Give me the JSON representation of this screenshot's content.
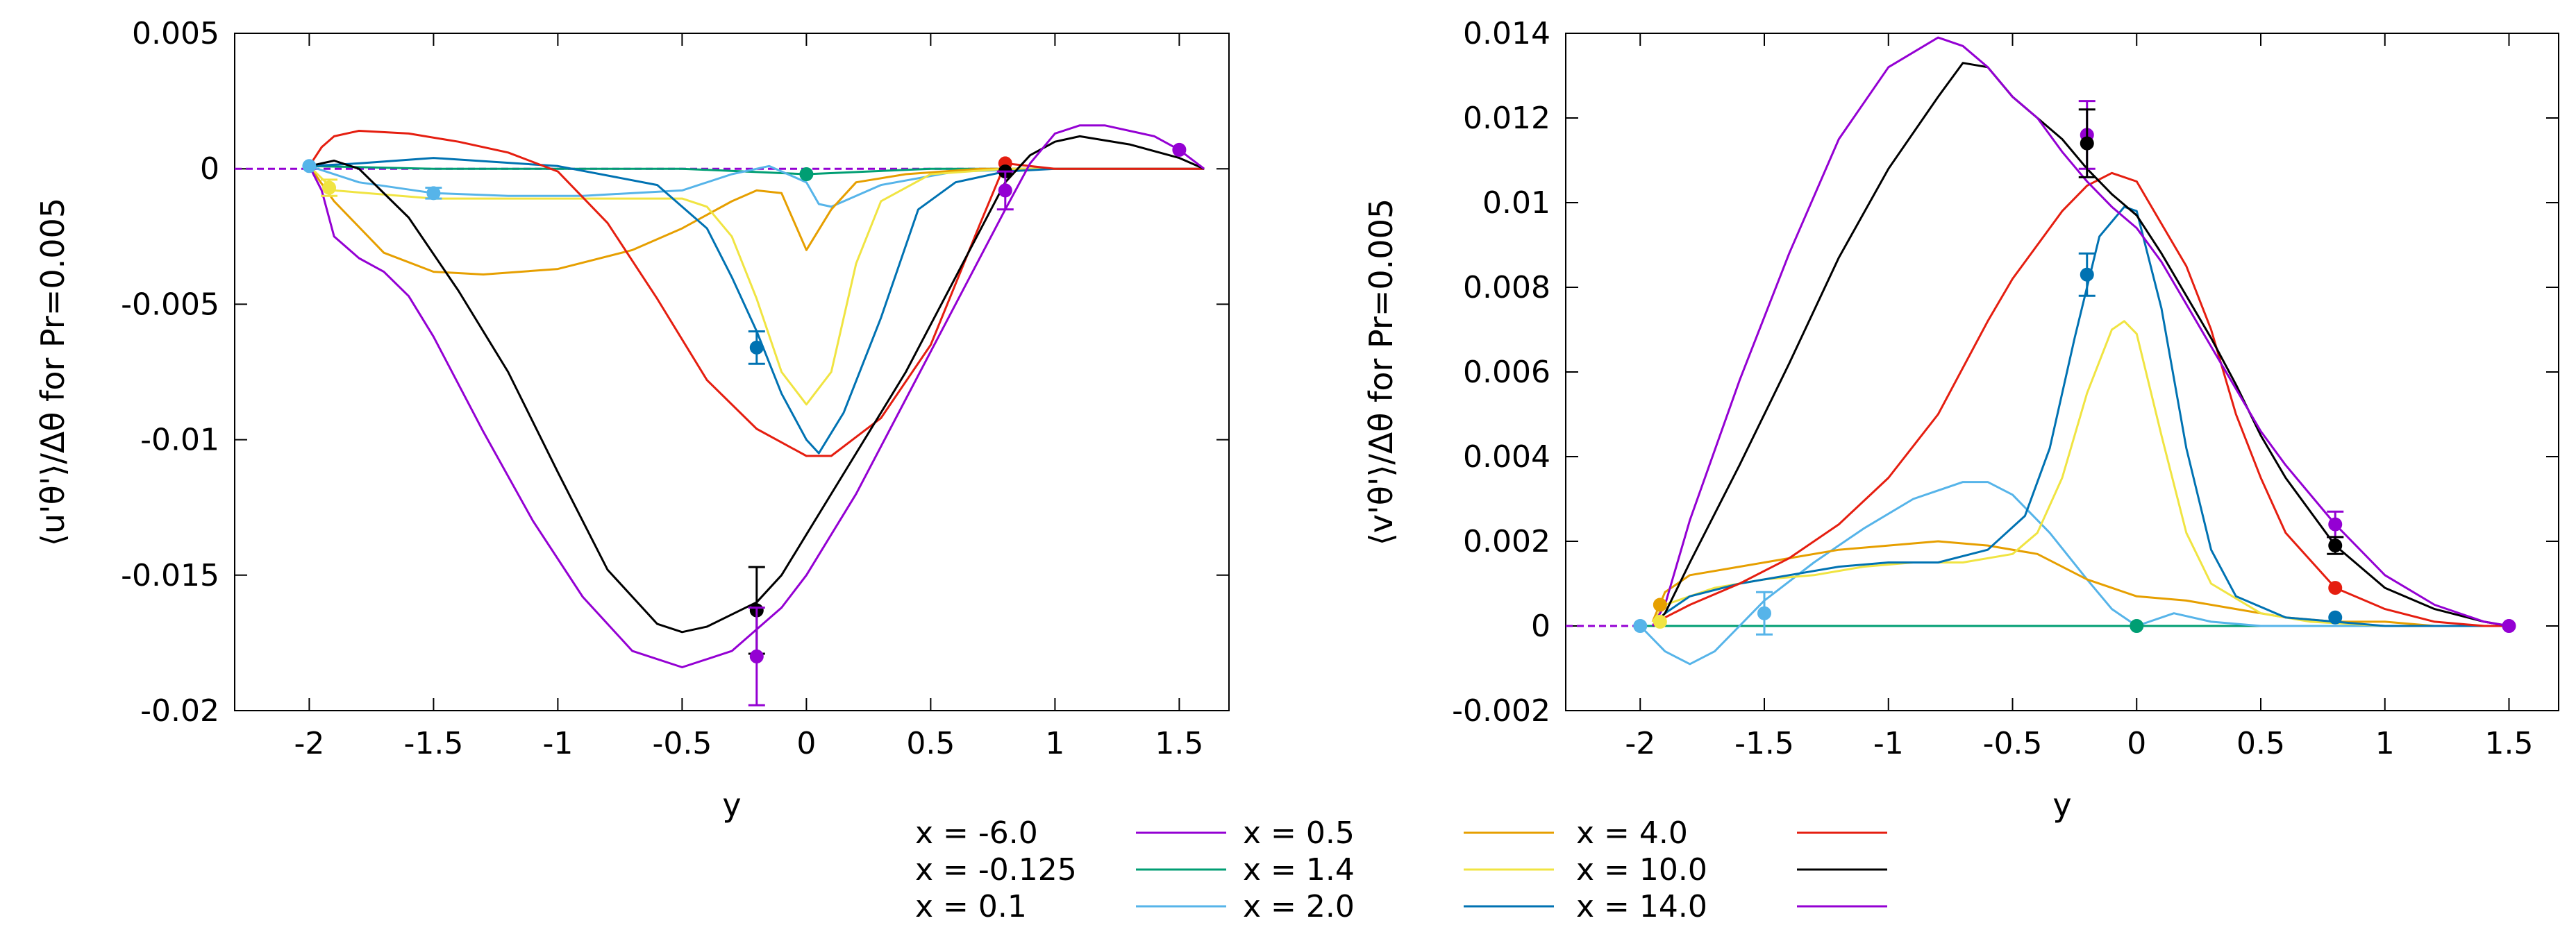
{
  "figure": {
    "legend": [
      {
        "label": "x = -6.0",
        "color": "#9400d3"
      },
      {
        "label": "x = -0.125",
        "color": "#009e73"
      },
      {
        "label": "x =  0.1",
        "color": "#56b4e9"
      },
      {
        "label": "x =  0.5",
        "color": "#e69f00"
      },
      {
        "label": "x =  1.4",
        "color": "#f0e442"
      },
      {
        "label": "x =  2.0",
        "color": "#0072b2"
      },
      {
        "label": "x =  4.0",
        "color": "#e51e10"
      },
      {
        "label": "x =  10.0",
        "color": "#000000"
      },
      {
        "label": "x =  14.0",
        "color": "#9400d3"
      }
    ],
    "legend_placement": "bottom-center, 3 rows"
  },
  "chart_data": [
    {
      "type": "line",
      "xlabel": "y",
      "ylabel": "⟨u'θ'⟩/Δθ for Pr=0.005",
      "xlim": [
        -2.3,
        1.7
      ],
      "ylim": [
        -0.02,
        0.005
      ],
      "xticks": [
        "-2",
        "-1.5",
        "-1",
        "-0.5",
        "0",
        "0.5",
        "1",
        "1.5"
      ],
      "yticks": [
        "0.005",
        "0",
        "-0.005",
        "-0.01",
        "-0.015",
        "-0.02"
      ],
      "grid": false,
      "series": [
        {
          "name": "x = -6.0",
          "color": "#9400d3",
          "x": [
            -2.3,
            -1.0,
            0.0,
            1.0,
            1.6
          ],
          "y": [
            0,
            0,
            0,
            0,
            0
          ]
        },
        {
          "name": "x = -0.125",
          "color": "#009e73",
          "x": [
            -2.0,
            -1.5,
            -1.0,
            -0.5,
            0.0,
            0.5,
            1.0,
            1.5,
            1.6
          ],
          "y": [
            0.0001,
            0.0,
            0.0,
            0.0,
            -0.0002,
            0.0,
            0.0,
            0.0,
            0.0
          ]
        },
        {
          "name": "x =  0.1",
          "color": "#56b4e9",
          "x": [
            -2.0,
            -1.8,
            -1.5,
            -1.2,
            -0.9,
            -0.5,
            -0.3,
            -0.15,
            0.0,
            0.05,
            0.1,
            0.3,
            0.6,
            1.0,
            1.5,
            1.6
          ],
          "y": [
            0.0001,
            -0.0005,
            -0.0009,
            -0.001,
            -0.001,
            -0.0008,
            -0.0002,
            0.0001,
            -0.0005,
            -0.0013,
            -0.0014,
            -0.0006,
            -0.0001,
            0.0,
            0.0,
            0.0
          ]
        },
        {
          "name": "x =  0.5",
          "color": "#e69f00",
          "x": [
            -2.0,
            -1.9,
            -1.7,
            -1.5,
            -1.3,
            -1.0,
            -0.7,
            -0.5,
            -0.3,
            -0.2,
            -0.1,
            0.0,
            0.1,
            0.2,
            0.4,
            0.7,
            1.0,
            1.6
          ],
          "y": [
            0.0001,
            -0.0012,
            -0.0031,
            -0.0038,
            -0.0039,
            -0.0037,
            -0.003,
            -0.0022,
            -0.0012,
            -0.0008,
            -0.0009,
            -0.003,
            -0.0015,
            -0.0005,
            -0.0002,
            0.0,
            0.0,
            0.0
          ]
        },
        {
          "name": "x =  1.4",
          "color": "#f0e442",
          "x": [
            -2.0,
            -1.9,
            -1.5,
            -1.0,
            -0.5,
            -0.4,
            -0.3,
            -0.2,
            -0.1,
            0.0,
            0.1,
            0.2,
            0.3,
            0.5,
            0.8,
            1.0,
            1.6
          ],
          "y": [
            0.0001,
            -0.0008,
            -0.0011,
            -0.0011,
            -0.0011,
            -0.0014,
            -0.0025,
            -0.0048,
            -0.0075,
            -0.0087,
            -0.0075,
            -0.0035,
            -0.0012,
            -0.0002,
            0.0,
            0.0,
            0.0
          ]
        },
        {
          "name": "x =  2.0",
          "color": "#0072b2",
          "x": [
            -2.0,
            -1.8,
            -1.5,
            -1.0,
            -0.6,
            -0.4,
            -0.3,
            -0.2,
            -0.1,
            0.0,
            0.05,
            0.15,
            0.3,
            0.45,
            0.6,
            0.8,
            1.0,
            1.6
          ],
          "y": [
            0.0001,
            0.0002,
            0.0004,
            0.0001,
            -0.0006,
            -0.0022,
            -0.004,
            -0.006,
            -0.0083,
            -0.01,
            -0.0105,
            -0.009,
            -0.0055,
            -0.0015,
            -0.0005,
            -0.0001,
            0.0,
            0.0
          ]
        },
        {
          "name": "x =  4.0",
          "color": "#e51e10",
          "x": [
            -2.0,
            -1.95,
            -1.9,
            -1.8,
            -1.6,
            -1.4,
            -1.2,
            -1.0,
            -0.8,
            -0.6,
            -0.4,
            -0.2,
            0.0,
            0.1,
            0.3,
            0.5,
            0.7,
            0.8,
            1.0,
            1.3,
            1.6
          ],
          "y": [
            0.0001,
            0.0008,
            0.0012,
            0.0014,
            0.0013,
            0.001,
            0.0006,
            -0.0001,
            -0.002,
            -0.0048,
            -0.0078,
            -0.0096,
            -0.0106,
            -0.0106,
            -0.0092,
            -0.0065,
            -0.002,
            0.0002,
            0.0,
            0.0,
            0.0
          ]
        },
        {
          "name": "x =  10.0",
          "color": "#000000",
          "x": [
            -2.0,
            -1.9,
            -1.8,
            -1.6,
            -1.4,
            -1.2,
            -1.0,
            -0.8,
            -0.6,
            -0.5,
            -0.4,
            -0.2,
            -0.1,
            0.0,
            0.2,
            0.4,
            0.6,
            0.8,
            0.9,
            1.0,
            1.1,
            1.3,
            1.5,
            1.6
          ],
          "y": [
            0.0001,
            0.0003,
            0.0,
            -0.0018,
            -0.0045,
            -0.0075,
            -0.0112,
            -0.0148,
            -0.0168,
            -0.0171,
            -0.0169,
            -0.016,
            -0.015,
            -0.0135,
            -0.0105,
            -0.0075,
            -0.004,
            -0.0005,
            0.0005,
            0.001,
            0.0012,
            0.0009,
            0.0004,
            0.0
          ]
        },
        {
          "name": "x =  14.0",
          "color": "#9400d3",
          "x": [
            -2.0,
            -1.95,
            -1.9,
            -1.8,
            -1.7,
            -1.6,
            -1.5,
            -1.3,
            -1.1,
            -0.9,
            -0.7,
            -0.5,
            -0.3,
            -0.1,
            0.0,
            0.2,
            0.4,
            0.6,
            0.8,
            0.9,
            1.0,
            1.1,
            1.2,
            1.4,
            1.5,
            1.6
          ],
          "y": [
            0.0001,
            -0.0008,
            -0.0025,
            -0.0033,
            -0.0038,
            -0.0047,
            -0.0062,
            -0.0097,
            -0.013,
            -0.0158,
            -0.0178,
            -0.0184,
            -0.0178,
            -0.0162,
            -0.015,
            -0.012,
            -0.0085,
            -0.005,
            -0.0015,
            0.0002,
            0.0013,
            0.0016,
            0.0016,
            0.0012,
            0.0007,
            0.0
          ]
        }
      ],
      "markers": [
        {
          "x": -2.0,
          "y": 0.0001,
          "color": "#56b4e9"
        },
        {
          "x": -1.92,
          "y": -0.0007,
          "color": "#f0e442",
          "err": 0.0003
        },
        {
          "x": -1.5,
          "y": -0.0009,
          "color": "#56b4e9",
          "err": 0.0002
        },
        {
          "x": -0.2,
          "y": -0.0066,
          "color": "#0072b2",
          "err": 0.0006
        },
        {
          "x": -0.2,
          "y": -0.0163,
          "color": "#000000",
          "err": 0.0016
        },
        {
          "x": -0.2,
          "y": -0.018,
          "color": "#9400d3",
          "err": 0.0018
        },
        {
          "x": 0.0,
          "y": -0.0002,
          "color": "#009e73"
        },
        {
          "x": 0.8,
          "y": 0.0002,
          "color": "#e51e10"
        },
        {
          "x": 0.8,
          "y": -0.0001,
          "color": "#000000"
        },
        {
          "x": 0.8,
          "y": -0.0008,
          "color": "#9400d3",
          "err": 0.0007
        },
        {
          "x": 1.5,
          "y": 0.0007,
          "color": "#9400d3"
        }
      ]
    },
    {
      "type": "line",
      "xlabel": "y",
      "ylabel": "⟨v'θ'⟩/Δθ for Pr=0.005",
      "xlim": [
        -2.3,
        1.7
      ],
      "ylim": [
        -0.002,
        0.014
      ],
      "xticks": [
        "-2",
        "-1.5",
        "-1",
        "-0.5",
        "0",
        "0.5",
        "1",
        "1.5"
      ],
      "yticks": [
        "0.014",
        "0.012",
        "0.01",
        "0.008",
        "0.006",
        "0.004",
        "0.002",
        "0",
        "-0.002"
      ],
      "grid": false,
      "series": [
        {
          "name": "x = -6.0",
          "color": "#9400d3",
          "x": [
            -2.3,
            -1.0,
            0.0,
            1.0,
            1.5
          ],
          "y": [
            0,
            0,
            0,
            0,
            0
          ]
        },
        {
          "name": "x = -0.125",
          "color": "#009e73",
          "x": [
            -2.0,
            -1.0,
            0.0,
            1.0,
            1.5
          ],
          "y": [
            0,
            0,
            0,
            0,
            0
          ]
        },
        {
          "name": "x =  0.1",
          "color": "#56b4e9",
          "x": [
            -2.0,
            -1.9,
            -1.8,
            -1.7,
            -1.6,
            -1.5,
            -1.3,
            -1.1,
            -0.9,
            -0.7,
            -0.6,
            -0.5,
            -0.35,
            -0.2,
            -0.1,
            0.0,
            0.15,
            0.3,
            0.5,
            1.0,
            1.5
          ],
          "y": [
            0.0,
            -0.0006,
            -0.0009,
            -0.0006,
            0.0,
            0.0006,
            0.0015,
            0.0023,
            0.003,
            0.0034,
            0.0034,
            0.0031,
            0.0022,
            0.0011,
            0.0004,
            0.0,
            0.0003,
            0.0001,
            0.0,
            0.0,
            0.0
          ]
        },
        {
          "name": "x =  0.5",
          "color": "#e69f00",
          "x": [
            -1.95,
            -1.9,
            -1.8,
            -1.6,
            -1.4,
            -1.2,
            -1.0,
            -0.8,
            -0.6,
            -0.4,
            -0.2,
            0.0,
            0.2,
            0.4,
            0.6,
            0.8,
            1.0,
            1.2,
            1.5
          ],
          "y": [
            0.0001,
            0.0008,
            0.0012,
            0.0014,
            0.0016,
            0.0018,
            0.0019,
            0.002,
            0.0019,
            0.0017,
            0.0011,
            0.0007,
            0.0006,
            0.0004,
            0.0002,
            0.0001,
            0.0001,
            0.0,
            0.0
          ]
        },
        {
          "name": "x =  1.4",
          "color": "#f0e442",
          "x": [
            -1.95,
            -1.9,
            -1.7,
            -1.5,
            -1.3,
            -1.1,
            -0.9,
            -0.7,
            -0.5,
            -0.4,
            -0.3,
            -0.2,
            -0.1,
            -0.05,
            0.0,
            0.1,
            0.2,
            0.3,
            0.5,
            0.7,
            1.0,
            1.5
          ],
          "y": [
            0.0001,
            0.0005,
            0.0009,
            0.0011,
            0.0012,
            0.0014,
            0.0015,
            0.0015,
            0.0017,
            0.0022,
            0.0035,
            0.0055,
            0.007,
            0.0072,
            0.0069,
            0.0045,
            0.0022,
            0.001,
            0.0003,
            0.0001,
            0.0,
            0.0
          ]
        },
        {
          "name": "x =  2.0",
          "color": "#0072b2",
          "x": [
            -1.95,
            -1.9,
            -1.8,
            -1.6,
            -1.4,
            -1.2,
            -1.0,
            -0.8,
            -0.6,
            -0.45,
            -0.35,
            -0.25,
            -0.15,
            -0.05,
            0.0,
            0.1,
            0.2,
            0.3,
            0.4,
            0.6,
            0.8,
            1.0,
            1.5
          ],
          "y": [
            0.0,
            0.0003,
            0.0007,
            0.001,
            0.0012,
            0.0014,
            0.0015,
            0.0015,
            0.0018,
            0.0026,
            0.0042,
            0.0068,
            0.0092,
            0.0099,
            0.0098,
            0.0075,
            0.0042,
            0.0018,
            0.0007,
            0.0002,
            0.0001,
            0.0,
            0.0
          ]
        },
        {
          "name": "x =  4.0",
          "color": "#e51e10",
          "x": [
            -1.95,
            -1.9,
            -1.8,
            -1.6,
            -1.4,
            -1.2,
            -1.0,
            -0.8,
            -0.6,
            -0.5,
            -0.4,
            -0.3,
            -0.2,
            -0.1,
            0.0,
            0.1,
            0.2,
            0.3,
            0.4,
            0.5,
            0.6,
            0.8,
            1.0,
            1.2,
            1.4,
            1.5
          ],
          "y": [
            0.0,
            0.0002,
            0.0005,
            0.001,
            0.0016,
            0.0024,
            0.0035,
            0.005,
            0.0072,
            0.0082,
            0.009,
            0.0098,
            0.0104,
            0.0107,
            0.0105,
            0.0095,
            0.0085,
            0.007,
            0.005,
            0.0035,
            0.0022,
            0.0009,
            0.0004,
            0.0001,
            0.0,
            0.0
          ]
        },
        {
          "name": "x =  10.0",
          "color": "#000000",
          "x": [
            -1.95,
            -1.9,
            -1.8,
            -1.6,
            -1.4,
            -1.2,
            -1.0,
            -0.8,
            -0.7,
            -0.6,
            -0.5,
            -0.4,
            -0.3,
            -0.2,
            -0.1,
            0.0,
            0.1,
            0.2,
            0.3,
            0.4,
            0.5,
            0.6,
            0.8,
            1.0,
            1.2,
            1.4,
            1.5
          ],
          "y": [
            0.0,
            0.0003,
            0.0015,
            0.0038,
            0.0062,
            0.0087,
            0.0108,
            0.0125,
            0.0133,
            0.0132,
            0.0125,
            0.012,
            0.0115,
            0.0108,
            0.0102,
            0.0097,
            0.0088,
            0.0078,
            0.0068,
            0.0057,
            0.0045,
            0.0035,
            0.0019,
            0.0009,
            0.0004,
            0.0001,
            0.0
          ]
        },
        {
          "name": "x =  14.0",
          "color": "#9400d3",
          "x": [
            -1.95,
            -1.9,
            -1.8,
            -1.6,
            -1.4,
            -1.2,
            -1.0,
            -0.8,
            -0.7,
            -0.6,
            -0.5,
            -0.4,
            -0.3,
            -0.2,
            -0.1,
            0.0,
            0.1,
            0.2,
            0.3,
            0.4,
            0.5,
            0.6,
            0.8,
            1.0,
            1.2,
            1.4,
            1.5
          ],
          "y": [
            0.0,
            0.0005,
            0.0025,
            0.0058,
            0.0088,
            0.0115,
            0.0132,
            0.0139,
            0.0137,
            0.0132,
            0.0125,
            0.012,
            0.0112,
            0.0105,
            0.0099,
            0.0094,
            0.0086,
            0.0076,
            0.0066,
            0.0056,
            0.0046,
            0.0038,
            0.0024,
            0.0012,
            0.0005,
            0.0001,
            0.0
          ]
        }
      ],
      "markers": [
        {
          "x": -2.0,
          "y": 0.0,
          "color": "#56b4e9"
        },
        {
          "x": -1.92,
          "y": 0.0005,
          "color": "#e69f00"
        },
        {
          "x": -1.92,
          "y": 0.0001,
          "color": "#f0e442"
        },
        {
          "x": -1.5,
          "y": 0.0003,
          "color": "#56b4e9",
          "err": 0.0005
        },
        {
          "x": -0.2,
          "y": 0.0116,
          "color": "#9400d3",
          "err": 0.0008
        },
        {
          "x": -0.2,
          "y": 0.0114,
          "color": "#000000",
          "err": 0.0008
        },
        {
          "x": -0.2,
          "y": 0.0083,
          "color": "#0072b2",
          "err": 0.0005
        },
        {
          "x": 0.0,
          "y": 0.0,
          "color": "#009e73"
        },
        {
          "x": 0.8,
          "y": 0.0024,
          "color": "#9400d3",
          "err": 0.0003
        },
        {
          "x": 0.8,
          "y": 0.0019,
          "color": "#000000",
          "err": 0.0002
        },
        {
          "x": 0.8,
          "y": 0.0009,
          "color": "#e51e10"
        },
        {
          "x": 0.8,
          "y": 0.0002,
          "color": "#0072b2"
        },
        {
          "x": 1.5,
          "y": 0.0,
          "color": "#9400d3"
        }
      ]
    }
  ]
}
